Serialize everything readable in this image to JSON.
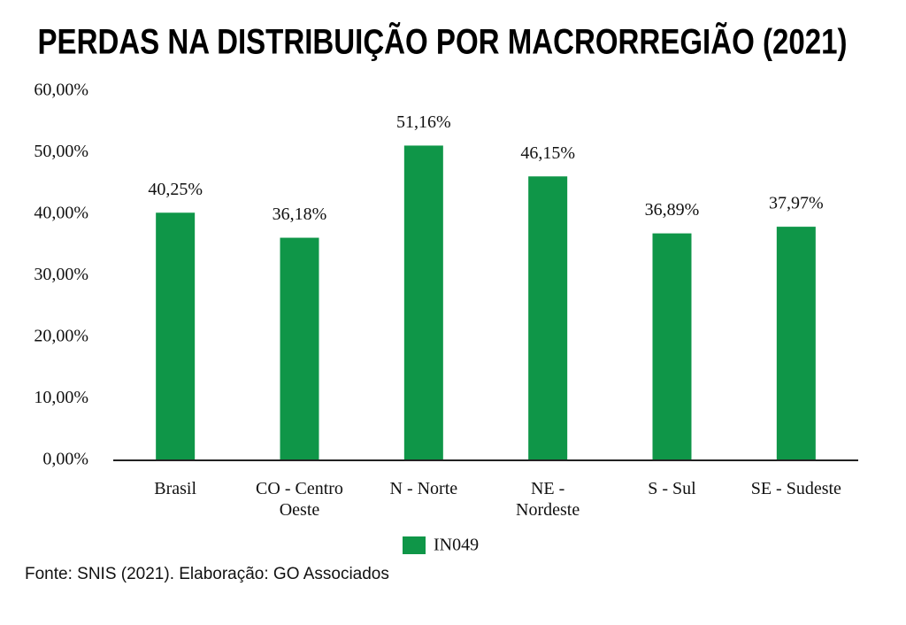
{
  "chart_data": {
    "type": "bar",
    "title": "PERDAS NA DISTRIBUIÇÃO POR MACRORREGIÃO (2021)",
    "categories": [
      "Brasil",
      "CO - Centro\nOeste",
      "N - Norte",
      "NE -\nNordeste",
      "S - Sul",
      "SE - Sudeste"
    ],
    "series": [
      {
        "name": "IN049",
        "color": "#0f9648",
        "values": [
          40.25,
          36.18,
          51.16,
          46.15,
          36.89,
          37.97
        ],
        "value_labels": [
          "40,25%",
          "36,18%",
          "51,16%",
          "46,15%",
          "36,89%",
          "37,97%"
        ]
      }
    ],
    "ylim": [
      0,
      60
    ],
    "yticks": [
      {
        "value": 0,
        "label": "0,00%"
      },
      {
        "value": 10,
        "label": "10,00%"
      },
      {
        "value": 20,
        "label": "20,00%"
      },
      {
        "value": 30,
        "label": "30,00%"
      },
      {
        "value": 40,
        "label": "40,00%"
      },
      {
        "value": 50,
        "label": "50,00%"
      },
      {
        "value": 60,
        "label": "60,00%"
      }
    ],
    "grid": false,
    "legend": "bottom",
    "source": "Fonte: SNIS (2021). Elaboração: GO Associados"
  }
}
